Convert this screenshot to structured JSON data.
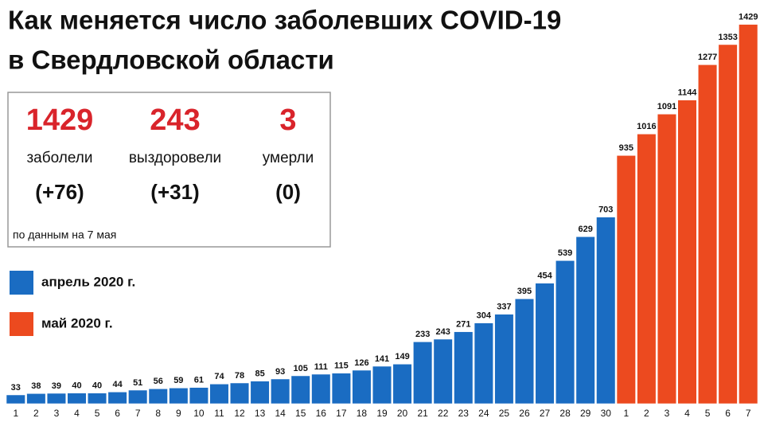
{
  "chart_data": {
    "type": "bar",
    "title": [
      "Как  меняется число  заболевших COVID-19",
      "в Свердловской области"
    ],
    "stats": [
      {
        "value": 1429,
        "label": "заболели",
        "change": "(+76)"
      },
      {
        "value": 243,
        "label": "выздоровели",
        "change": "(+31)"
      },
      {
        "value": 3,
        "label": "умерли",
        "change": "(0)"
      }
    ],
    "note": "по данным на 7 мая",
    "categories": [
      "1",
      "2",
      "3",
      "4",
      "5",
      "6",
      "7",
      "8",
      "9",
      "10",
      "11",
      "12",
      "13",
      "14",
      "15",
      "16",
      "17",
      "18",
      "19",
      "20",
      "21",
      "22",
      "23",
      "24",
      "25",
      "26",
      "27",
      "28",
      "29",
      "30",
      "1",
      "2",
      "3",
      "4",
      "5",
      "6",
      "7"
    ],
    "series": [
      {
        "name": "апрель 2020 г.",
        "color": "#1a6cc2",
        "values": [
          33,
          38,
          39,
          40,
          40,
          44,
          51,
          56,
          59,
          61,
          74,
          78,
          85,
          93,
          105,
          111,
          115,
          126,
          141,
          149,
          233,
          243,
          271,
          304,
          337,
          395,
          454,
          539,
          629,
          703,
          null,
          null,
          null,
          null,
          null,
          null,
          null
        ]
      },
      {
        "name": "май 2020 г.",
        "color": "#ec4a1f",
        "values": [
          null,
          null,
          null,
          null,
          null,
          null,
          null,
          null,
          null,
          null,
          null,
          null,
          null,
          null,
          null,
          null,
          null,
          null,
          null,
          null,
          null,
          null,
          null,
          null,
          null,
          null,
          null,
          null,
          null,
          null,
          935,
          1016,
          1091,
          1144,
          1277,
          1353,
          1429
        ]
      }
    ],
    "ylim": [
      0,
      1500
    ]
  }
}
